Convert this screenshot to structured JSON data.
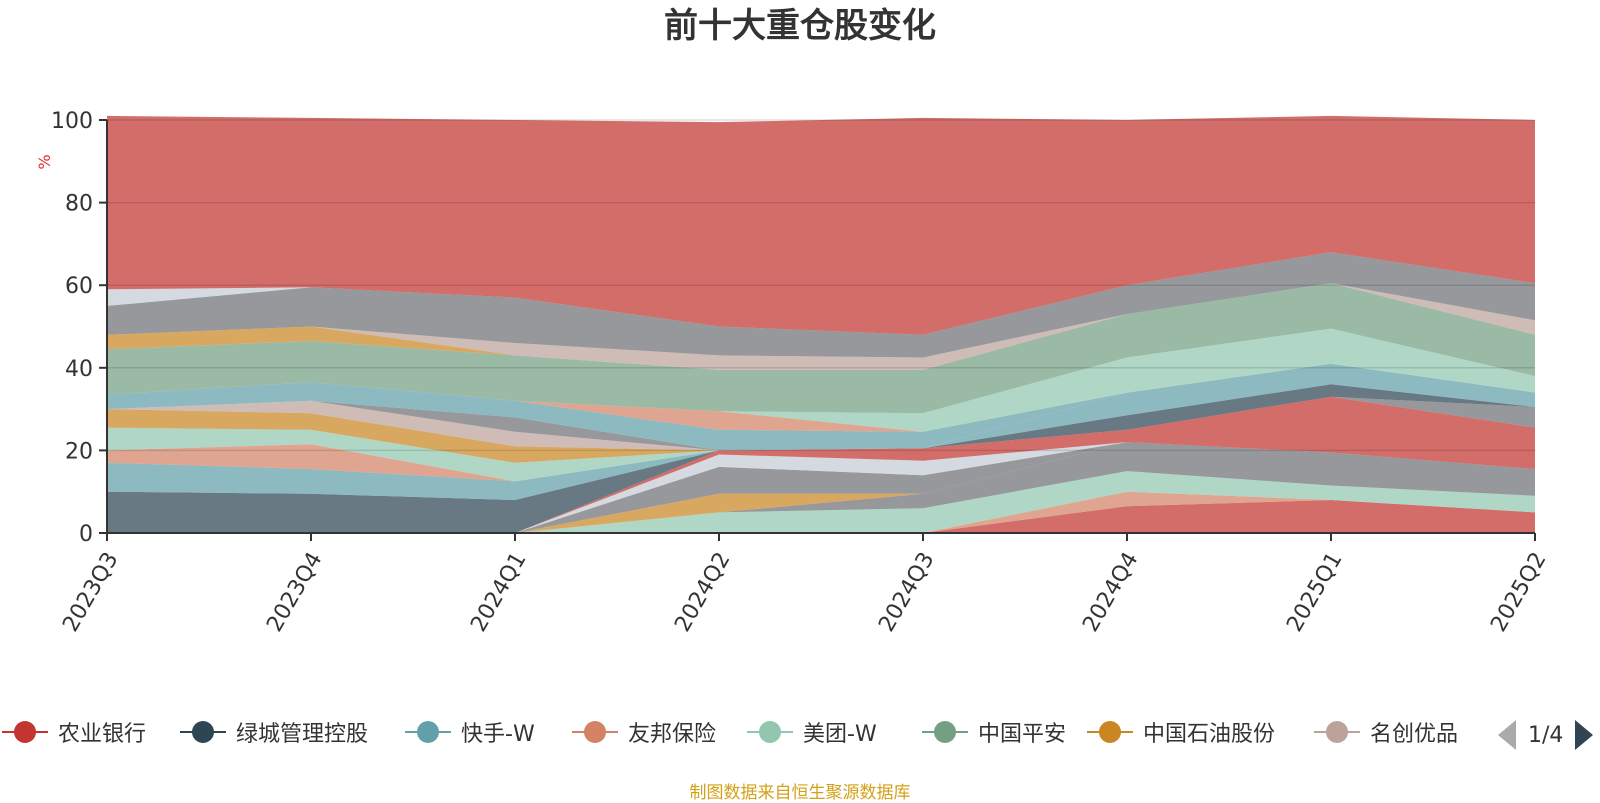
{
  "title": "前十大重仓股变化",
  "footer": "制图数据来自恒生聚源数据库",
  "pager": {
    "text": "1/4"
  },
  "legend_page": [
    "农业银行",
    "绿城管理控股",
    "快手-W",
    "友邦保险",
    "美团-W",
    "中国平安",
    "中国石油股份",
    "名创优品"
  ],
  "chart_data": {
    "type": "area",
    "stacked": true,
    "title": "前十大重仓股变化",
    "ylabel": "%",
    "ylim": [
      0,
      100
    ],
    "yticks": [
      0,
      20,
      40,
      60,
      80,
      100
    ],
    "grid": true,
    "categories": [
      "2023Q3",
      "2023Q4",
      "2024Q1",
      "2024Q2",
      "2024Q3",
      "2024Q4",
      "2025Q1",
      "2025Q2"
    ],
    "series": [
      {
        "name": "农业银行",
        "color": "#c23531",
        "values": [
          0,
          0,
          0,
          0,
          0,
          6.5,
          8,
          5
        ]
      },
      {
        "name": "友邦保险",
        "color": "#d48265",
        "values": [
          0,
          0,
          0,
          0,
          0,
          3.5,
          0,
          0
        ]
      },
      {
        "name": "美团-W",
        "color": "#91c7ae",
        "values": [
          0,
          0,
          0,
          5,
          6,
          5,
          3.5,
          4
        ]
      },
      {
        "name": "",
        "color": "#6e7074",
        "values": [
          0,
          0,
          0,
          0,
          3.5,
          7,
          8,
          6.5
        ]
      },
      {
        "name": "",
        "color": "#ca8622",
        "values": [
          0,
          0,
          0,
          4.5,
          0,
          0,
          0,
          0
        ]
      },
      {
        "name": "",
        "color": "#6e7074",
        "values": [
          0,
          0,
          0,
          6.5,
          4.5,
          0,
          0,
          0
        ]
      },
      {
        "name": "",
        "color": "#c4ccd3",
        "values": [
          0,
          0,
          0,
          3,
          3.5,
          0,
          0,
          0
        ]
      },
      {
        "name": "",
        "color": "#c23531",
        "values": [
          0,
          0,
          0,
          1,
          3,
          3,
          13.5,
          10
        ]
      },
      {
        "name": "",
        "color": "#6e7074",
        "values": [
          0,
          0,
          0,
          0,
          0,
          0,
          0,
          5
        ]
      },
      {
        "name": "",
        "color": "#bda29a",
        "values": [
          0,
          0,
          0,
          0,
          0,
          0,
          0,
          0
        ]
      },
      {
        "name": "绿城管理控股",
        "color": "#2f4554",
        "values": [
          10,
          9.5,
          8,
          0,
          0,
          3.5,
          3,
          0
        ]
      },
      {
        "name": "快手-W",
        "color": "#61a0a8",
        "values": [
          7,
          6,
          4.5,
          0,
          0,
          5.5,
          5,
          3.5
        ]
      },
      {
        "name": "",
        "color": "#d48265",
        "values": [
          3,
          6,
          0,
          0,
          0,
          0,
          0,
          0
        ]
      },
      {
        "name": "",
        "color": "#91c7ae",
        "values": [
          5.5,
          3.5,
          4.5,
          0,
          0,
          0,
          0,
          0
        ]
      },
      {
        "name": "中国石油股份",
        "color": "#ca8622",
        "values": [
          4.5,
          4,
          4,
          0,
          0,
          0,
          0,
          0
        ]
      },
      {
        "name": "名创优品",
        "color": "#bda29a",
        "values": [
          0,
          3,
          3.5,
          0,
          0,
          0,
          0,
          0
        ]
      },
      {
        "name": "",
        "color": "#6e7074",
        "values": [
          0,
          0,
          3.5,
          0,
          0,
          0,
          0,
          0
        ]
      },
      {
        "name": "",
        "color": "#61a0a8",
        "values": [
          3.5,
          4.5,
          4,
          5,
          4,
          0,
          0,
          0
        ]
      },
      {
        "name": "",
        "color": "#d48265",
        "values": [
          0,
          0,
          0,
          4.5,
          0,
          0,
          0,
          0
        ]
      },
      {
        "name": "",
        "color": "#91c7ae",
        "values": [
          0,
          0,
          0,
          0,
          4.5,
          8.5,
          8.5,
          4
        ]
      },
      {
        "name": "中国平安",
        "color": "#749f83",
        "values": [
          11,
          10,
          11,
          10,
          10.5,
          10.5,
          11,
          10
        ]
      },
      {
        "name": "",
        "color": "#ca8622",
        "values": [
          3.5,
          3.5,
          0,
          0,
          0,
          0,
          0,
          0
        ]
      },
      {
        "name": "",
        "color": "#bda29a",
        "values": [
          0,
          0,
          3,
          3.5,
          3,
          0,
          0,
          3.5
        ]
      },
      {
        "name": "",
        "color": "#6e7074",
        "values": [
          7,
          9.5,
          11,
          7,
          5.5,
          7,
          7.5,
          9
        ]
      },
      {
        "name": "",
        "color": "#c4ccd3",
        "values": [
          4,
          0,
          0,
          0,
          0,
          0,
          0,
          0
        ]
      },
      {
        "name": "",
        "color": "#c23531",
        "values": [
          42,
          41,
          43,
          49.5,
          52.5,
          40,
          33,
          39.5
        ]
      }
    ]
  }
}
